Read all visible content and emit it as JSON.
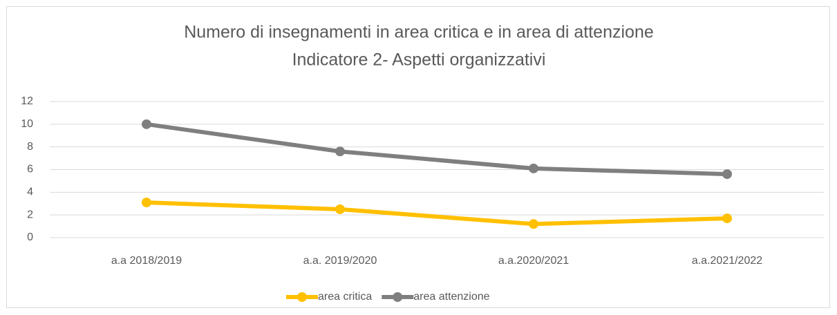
{
  "chart_data": {
    "type": "line",
    "title": "Numero di insegnamenti in area critica e in area di attenzione",
    "subtitle": "Indicatore 2- Aspetti organizzativi",
    "categories": [
      "a.a 2018/2019",
      "a.a. 2019/2020",
      "a.a.2020/2021",
      "a.a.2021/2022"
    ],
    "series": [
      {
        "name": "area critica",
        "color": "#ffc000",
        "values": [
          3.1,
          2.5,
          1.2,
          1.7
        ]
      },
      {
        "name": "area attenzione",
        "color": "#7f7f7f",
        "values": [
          10,
          7.6,
          6.1,
          5.6
        ]
      }
    ],
    "ylim": [
      0,
      12
    ],
    "yticks": [
      0,
      2,
      4,
      6,
      8,
      10,
      12
    ],
    "grid": true,
    "legend": "bottom"
  }
}
